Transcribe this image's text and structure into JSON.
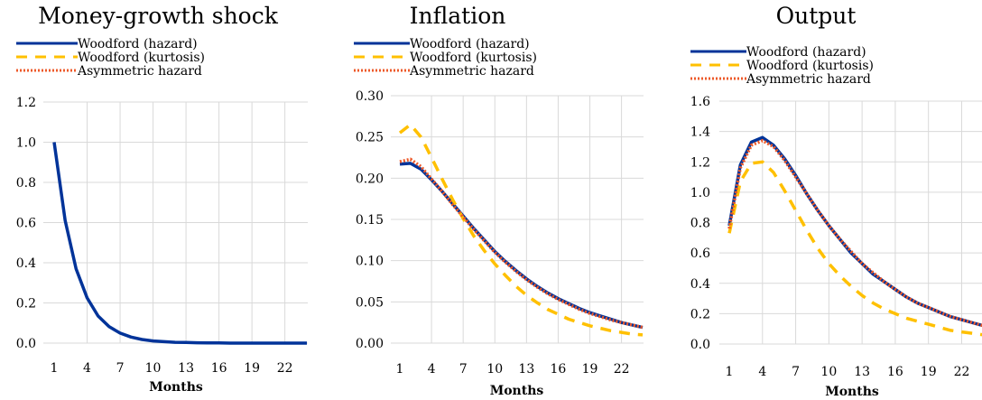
{
  "chart_data": [
    {
      "type": "line",
      "title": "Money-growth shock",
      "xlabel": "Months",
      "ylabel": "",
      "ylim": [
        0,
        1.2
      ],
      "yticks": [
        "0.0",
        "0.2",
        "0.4",
        "0.6",
        "0.8",
        "1.0",
        "1.2"
      ],
      "xticks": [
        "1",
        "4",
        "7",
        "10",
        "13",
        "16",
        "19",
        "22"
      ],
      "legend": [
        "Woodford (hazard)",
        "Woodford (kurtosis)",
        "Asymmetric hazard"
      ],
      "x": [
        1,
        2,
        3,
        4,
        5,
        6,
        7,
        8,
        9,
        10,
        11,
        12,
        13,
        14,
        15,
        16,
        17,
        18,
        19,
        20,
        21,
        22,
        23,
        24
      ],
      "series": [
        {
          "name": "Woodford (hazard)",
          "values": [
            1.0,
            0.61,
            0.37,
            0.225,
            0.135,
            0.082,
            0.05,
            0.03,
            0.018,
            0.011,
            0.007,
            0.004,
            0.003,
            0.002,
            0.001,
            0.001,
            0.0,
            0.0,
            0.0,
            0.0,
            0.0,
            0.0,
            0.0,
            0.0
          ]
        }
      ]
    },
    {
      "type": "line",
      "title": "Inflation",
      "xlabel": "Months",
      "ylabel": "",
      "ylim": [
        0,
        0.3
      ],
      "yticks": [
        "0.00",
        "0.05",
        "0.10",
        "0.15",
        "0.20",
        "0.25",
        "0.30"
      ],
      "xticks": [
        "1",
        "4",
        "7",
        "10",
        "13",
        "16",
        "19",
        "22"
      ],
      "legend": [
        "Woodford (hazard)",
        "Woodford (kurtosis)",
        "Asymmetric hazard"
      ],
      "x": [
        1,
        2,
        3,
        4,
        5,
        6,
        7,
        8,
        9,
        10,
        11,
        12,
        13,
        14,
        15,
        16,
        17,
        18,
        19,
        20,
        21,
        22,
        23,
        24
      ],
      "series": [
        {
          "name": "Woodford (hazard)",
          "values": [
            0.217,
            0.218,
            0.211,
            0.198,
            0.184,
            0.169,
            0.154,
            0.139,
            0.125,
            0.111,
            0.099,
            0.088,
            0.078,
            0.069,
            0.061,
            0.054,
            0.048,
            0.042,
            0.037,
            0.033,
            0.029,
            0.025,
            0.022,
            0.019
          ]
        },
        {
          "name": "Woodford (kurtosis)",
          "values": [
            0.255,
            0.265,
            0.25,
            0.225,
            0.199,
            0.174,
            0.151,
            0.13,
            0.112,
            0.096,
            0.082,
            0.069,
            0.058,
            0.049,
            0.041,
            0.035,
            0.029,
            0.025,
            0.021,
            0.018,
            0.015,
            0.013,
            0.011,
            0.01
          ]
        },
        {
          "name": "Asymmetric hazard",
          "values": [
            0.22,
            0.223,
            0.214,
            0.199,
            0.184,
            0.168,
            0.153,
            0.138,
            0.124,
            0.11,
            0.098,
            0.087,
            0.077,
            0.068,
            0.06,
            0.053,
            0.047,
            0.041,
            0.036,
            0.032,
            0.028,
            0.025,
            0.022,
            0.019
          ]
        }
      ]
    },
    {
      "type": "line",
      "title": "Output",
      "xlabel": "Months",
      "ylabel": "",
      "ylim": [
        0,
        1.6
      ],
      "yticks": [
        "0.0",
        "0.2",
        "0.4",
        "0.6",
        "0.8",
        "1.0",
        "1.2",
        "1.4",
        "1.6"
      ],
      "xticks": [
        "1",
        "4",
        "7",
        "10",
        "13",
        "16",
        "19",
        "22"
      ],
      "legend": [
        "Woodford (hazard)",
        "Woodford (kurtosis)",
        "Asymmetric hazard"
      ],
      "x": [
        1,
        2,
        3,
        4,
        5,
        6,
        7,
        8,
        9,
        10,
        11,
        12,
        13,
        14,
        15,
        16,
        17,
        18,
        19,
        20,
        21,
        22,
        23,
        24
      ],
      "series": [
        {
          "name": "Woodford (hazard)",
          "values": [
            0.78,
            1.18,
            1.33,
            1.36,
            1.31,
            1.22,
            1.11,
            0.99,
            0.88,
            0.78,
            0.69,
            0.6,
            0.53,
            0.46,
            0.41,
            0.36,
            0.31,
            0.27,
            0.24,
            0.21,
            0.18,
            0.16,
            0.14,
            0.12
          ]
        },
        {
          "name": "Woodford (kurtosis)",
          "values": [
            0.73,
            1.07,
            1.19,
            1.2,
            1.13,
            1.01,
            0.88,
            0.75,
            0.63,
            0.53,
            0.45,
            0.38,
            0.32,
            0.27,
            0.23,
            0.2,
            0.17,
            0.15,
            0.13,
            0.11,
            0.09,
            0.08,
            0.07,
            0.06
          ]
        },
        {
          "name": "Asymmetric hazard",
          "values": [
            0.76,
            1.16,
            1.31,
            1.34,
            1.3,
            1.21,
            1.1,
            0.99,
            0.88,
            0.78,
            0.69,
            0.61,
            0.53,
            0.47,
            0.41,
            0.36,
            0.31,
            0.27,
            0.24,
            0.21,
            0.18,
            0.16,
            0.14,
            0.12
          ]
        }
      ]
    }
  ],
  "style": {
    "colors": {
      "Woodford (hazard)": "#003399",
      "Woodford (kurtosis)": "#ffc000",
      "Asymmetric hazard": "#ed5a2a"
    },
    "dashes": {
      "Woodford (hazard)": "solid",
      "Woodford (kurtosis)": "dashed",
      "Asymmetric hazard": "dotted"
    }
  }
}
